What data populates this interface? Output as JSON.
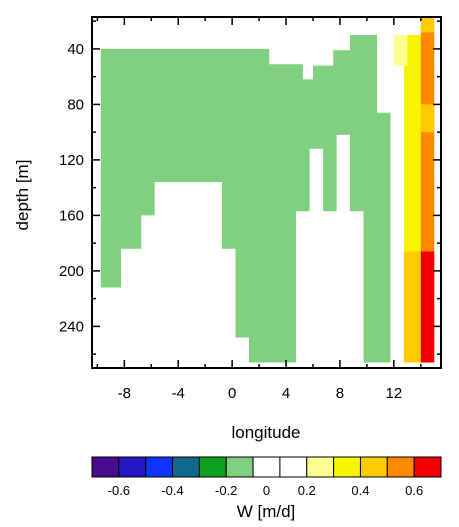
{
  "chart_data": {
    "type": "heatmap",
    "xlabel": "longitude",
    "ylabel": "depth [m]",
    "xlim": [
      -10.4,
      15.5
    ],
    "ylim": [
      270,
      17
    ],
    "x_ticks": [
      -8,
      -4,
      0,
      4,
      8,
      12
    ],
    "x_tick_labels": [
      "-8",
      "-4",
      "0",
      "4",
      "8",
      "12"
    ],
    "y_ticks": [
      40,
      80,
      120,
      160,
      200,
      240
    ],
    "y_tick_labels": [
      "40",
      "80",
      "120",
      "160",
      "200",
      "240"
    ],
    "fill_regions": [
      {
        "value": -0.15,
        "color": "#80d080",
        "polygon": [
          [
            -9.75,
            40
          ],
          [
            2.75,
            40
          ],
          [
            2.75,
            51
          ],
          [
            5.25,
            51
          ],
          [
            5.25,
            62
          ],
          [
            6.0,
            62
          ],
          [
            6.0,
            52
          ],
          [
            7.5,
            52
          ],
          [
            7.5,
            41
          ],
          [
            8.75,
            41
          ],
          [
            8.75,
            30
          ],
          [
            10.75,
            30
          ],
          [
            10.75,
            86
          ],
          [
            11.75,
            86
          ],
          [
            11.75,
            266
          ],
          [
            9.75,
            266
          ],
          [
            9.75,
            157
          ],
          [
            8.75,
            157
          ],
          [
            8.75,
            102
          ],
          [
            7.75,
            102
          ],
          [
            7.75,
            157
          ],
          [
            6.75,
            157
          ],
          [
            6.75,
            112
          ],
          [
            5.75,
            112
          ],
          [
            5.75,
            157
          ],
          [
            4.75,
            157
          ],
          [
            4.75,
            266
          ],
          [
            1.25,
            266
          ],
          [
            1.25,
            248
          ],
          [
            0.25,
            248
          ],
          [
            0.25,
            184
          ],
          [
            -0.75,
            184
          ],
          [
            -0.75,
            136
          ],
          [
            -5.75,
            136
          ],
          [
            -5.75,
            160
          ],
          [
            -6.75,
            160
          ],
          [
            -6.75,
            184
          ],
          [
            -8.25,
            184
          ],
          [
            -8.25,
            212
          ],
          [
            -9.75,
            212
          ]
        ]
      },
      {
        "value": 0.15,
        "color": "#ffff90",
        "polygon": [
          [
            12.0,
            30
          ],
          [
            13.0,
            30
          ],
          [
            13.0,
            52
          ],
          [
            12.0,
            52
          ]
        ]
      },
      {
        "value": 0.3,
        "color": "#f8f400",
        "polygon": [
          [
            13.0,
            30
          ],
          [
            14.0,
            30
          ],
          [
            14.0,
            52
          ],
          [
            13.0,
            52
          ]
        ]
      },
      {
        "value": 0.3,
        "color": "#f8f400",
        "polygon": [
          [
            12.75,
            52
          ],
          [
            14.0,
            52
          ],
          [
            14.0,
            186
          ],
          [
            12.75,
            186
          ]
        ]
      },
      {
        "value": 0.45,
        "color": "#ffca00",
        "polygon": [
          [
            12.75,
            186
          ],
          [
            14.0,
            186
          ],
          [
            14.0,
            266
          ],
          [
            12.75,
            266
          ]
        ]
      },
      {
        "value": 0.45,
        "color": "#ffca00",
        "polygon": [
          [
            14.0,
            17
          ],
          [
            15.0,
            17
          ],
          [
            15.0,
            28
          ],
          [
            14.0,
            28
          ]
        ]
      },
      {
        "value": 0.55,
        "color": "#ff8a00",
        "polygon": [
          [
            14.0,
            28
          ],
          [
            15.0,
            28
          ],
          [
            15.0,
            186
          ],
          [
            14.0,
            186
          ]
        ]
      },
      {
        "value": 0.45,
        "color": "#ffca00",
        "polygon": [
          [
            14.0,
            80
          ],
          [
            15.0,
            80
          ],
          [
            15.0,
            100
          ],
          [
            14.0,
            100
          ]
        ]
      },
      {
        "value": 0.65,
        "color": "#f00000",
        "polygon": [
          [
            14.0,
            186
          ],
          [
            15.0,
            186
          ],
          [
            15.0,
            266
          ],
          [
            14.0,
            266
          ]
        ]
      }
    ],
    "colorbar": {
      "title": "W [m/d]",
      "colors": [
        "#4a0b8f",
        "#2418c7",
        "#1034ff",
        "#11678c",
        "#10a020",
        "#80d080",
        "#ffffff",
        "#ffffff",
        "#ffff90",
        "#f8f400",
        "#ffca00",
        "#ff8a00",
        "#f00000"
      ],
      "labels": [
        "-0.6",
        "-0.4",
        "-0.2",
        "0",
        "0.2",
        "0.4",
        "0.6"
      ]
    }
  }
}
